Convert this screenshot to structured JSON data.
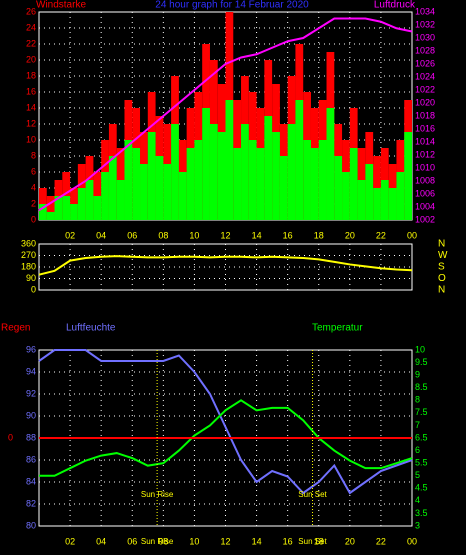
{
  "chart_data": [
    {
      "type": "bar-line",
      "title": "24 hour graph for 14 Februar 2020",
      "y_label": "Windstarke",
      "y2_label": "Luftdruck",
      "x": [
        0.25,
        0.75,
        1.25,
        1.75,
        2.25,
        2.75,
        3.25,
        3.75,
        4.25,
        4.75,
        5.25,
        5.75,
        6.25,
        6.75,
        7.25,
        7.75,
        8.25,
        8.75,
        9.25,
        9.75,
        10.25,
        10.75,
        11.25,
        11.75,
        12.25,
        12.75,
        13.25,
        13.75,
        14.25,
        14.75,
        15.25,
        15.75,
        16.25,
        16.75,
        17.25,
        17.75,
        18.25,
        18.75,
        19.25,
        19.75,
        20.25,
        20.75,
        21.25,
        21.75,
        22.25,
        22.75,
        23.25,
        23.75
      ],
      "series": [
        {
          "color": "#ff0000",
          "values": [
            4,
            3,
            5,
            6,
            4,
            7,
            8,
            6,
            10,
            12,
            9,
            15,
            14,
            11,
            16,
            13,
            12,
            18,
            10,
            14,
            16,
            22,
            20,
            17,
            26,
            15,
            18,
            16,
            14,
            20,
            17,
            12,
            18,
            22,
            16,
            14,
            15,
            21,
            12,
            10,
            14,
            9,
            11,
            8,
            9,
            7,
            10,
            15
          ]
        },
        {
          "color": "#00ff00",
          "values": [
            2,
            1,
            3,
            3,
            2,
            4,
            5,
            3,
            6,
            8,
            5,
            10,
            9,
            7,
            11,
            8,
            7,
            12,
            6,
            9,
            10,
            14,
            12,
            11,
            15,
            9,
            12,
            10,
            9,
            13,
            11,
            8,
            12,
            15,
            10,
            9,
            10,
            14,
            8,
            6,
            9,
            5,
            7,
            4,
            5,
            4,
            6,
            11
          ]
        },
        {
          "name": "Luftdruck",
          "color": "#ff00ff",
          "axis": "y2",
          "x": [
            0,
            1,
            2,
            3,
            4,
            5,
            6,
            7,
            8,
            9,
            10,
            11,
            12,
            13,
            14,
            15,
            16,
            17,
            18,
            19,
            20,
            21,
            22,
            23,
            24
          ],
          "values": [
            1003.5,
            1005,
            1006.5,
            1008,
            1010,
            1012,
            1014,
            1016,
            1018,
            1020,
            1022,
            1024,
            1026,
            1027,
            1027.5,
            1028.5,
            1029.5,
            1030,
            1031.5,
            1033,
            1033,
            1033,
            1032.5,
            1031.5,
            1031
          ]
        }
      ],
      "xlim": [
        0,
        24
      ],
      "xticks": [
        {
          "value": 2,
          "label": "02"
        },
        {
          "value": 4,
          "label": "04"
        },
        {
          "value": 6,
          "label": "06"
        },
        {
          "value": 8,
          "label": "08"
        },
        10,
        12,
        14,
        16,
        18,
        20,
        22,
        {
          "value": 24,
          "label": "00"
        }
      ],
      "ylim": [
        0,
        26
      ],
      "yticks": [
        0,
        2,
        4,
        6,
        8,
        10,
        12,
        14,
        16,
        18,
        20,
        22,
        24,
        26
      ],
      "y2lim": [
        1002,
        1034
      ],
      "y2ticks": [
        1002,
        1004,
        1006,
        1008,
        1010,
        1012,
        1014,
        1016,
        1018,
        1020,
        1022,
        1024,
        1026,
        1028,
        1030,
        1032,
        1034
      ],
      "grid": true
    },
    {
      "type": "line",
      "x": [
        0,
        1,
        2,
        3,
        4,
        5,
        6,
        7,
        8,
        9,
        10,
        11,
        12,
        13,
        14,
        15,
        16,
        17,
        18,
        19,
        20,
        21,
        22,
        23,
        24
      ],
      "series": [
        {
          "color": "#ffff00",
          "values": [
            120,
            150,
            230,
            250,
            260,
            265,
            260,
            255,
            255,
            260,
            260,
            255,
            260,
            260,
            255,
            260,
            255,
            250,
            240,
            220,
            200,
            185,
            170,
            160,
            155
          ]
        }
      ],
      "xlim": [
        0,
        24
      ],
      "xticks": [
        {
          "value": 2,
          "label": "02"
        },
        {
          "value": 4,
          "label": "04"
        },
        {
          "value": 6,
          "label": "06"
        },
        {
          "value": 8,
          "label": "08"
        },
        10,
        12,
        14,
        16,
        18,
        20,
        22,
        {
          "value": 24,
          "label": "00"
        }
      ],
      "ylim": [
        0,
        360
      ],
      "yticks": [
        0,
        90,
        180,
        270,
        360
      ],
      "y2lim": [
        0,
        360
      ],
      "y2ticks": [
        {
          "value": 0,
          "label": "N"
        },
        {
          "value": 90,
          "label": "O"
        },
        {
          "value": 180,
          "label": "S"
        },
        {
          "value": 270,
          "label": "W"
        },
        {
          "value": 360,
          "label": "N"
        }
      ],
      "grid": true
    },
    {
      "type": "line",
      "y_label": "Luftfeuchte",
      "y2_label": "Temperatur",
      "y3_label": "Regen",
      "x": [
        0,
        1,
        2,
        3,
        4,
        5,
        6,
        7,
        8,
        9,
        10,
        11,
        12,
        13,
        14,
        15,
        16,
        17,
        18,
        19,
        20,
        21,
        22,
        23,
        24
      ],
      "series": [
        {
          "name": "Luftfeuchte",
          "color": "#7070ff",
          "values": [
            95,
            96,
            96,
            96,
            95,
            95,
            95,
            95,
            95,
            95.5,
            94,
            92,
            89,
            86,
            84,
            85,
            84.5,
            83,
            84,
            85.5,
            83,
            84,
            85,
            85.5,
            86
          ]
        },
        {
          "name": "Temperatur",
          "color": "#00ff00",
          "axis": "y2",
          "values": [
            5.0,
            5.0,
            5.3,
            5.6,
            5.8,
            5.9,
            5.7,
            5.4,
            5.5,
            6.0,
            6.6,
            7.0,
            7.6,
            8.0,
            7.6,
            7.7,
            7.7,
            7.2,
            6.5,
            6.0,
            5.6,
            5.3,
            5.3,
            5.5,
            5.7
          ]
        },
        {
          "name": "Regen",
          "color": "#ff0000",
          "axis": "y3",
          "x": [
            0,
            24
          ],
          "values": [
            0,
            0
          ]
        }
      ],
      "xlim": [
        0,
        24
      ],
      "xticks": [
        {
          "value": 2,
          "label": "02"
        },
        {
          "value": 4,
          "label": "04"
        },
        {
          "value": 6,
          "label": "06"
        },
        {
          "value": 8,
          "label": "08"
        },
        10,
        12,
        14,
        16,
        18,
        20,
        22,
        {
          "value": 24,
          "label": "00"
        }
      ],
      "ylim": [
        80,
        96
      ],
      "yticks": [
        80,
        82,
        84,
        86,
        88,
        90,
        92,
        94,
        96
      ],
      "y2lim": [
        3,
        10
      ],
      "y2ticks": [
        3,
        3.5,
        4,
        4.5,
        5,
        5.5,
        6,
        6.5,
        7,
        7.5,
        8,
        8.5,
        9,
        9.5,
        10
      ],
      "y3lim": [
        -8,
        8
      ],
      "y3ticks": [
        0
      ],
      "annotations": [
        {
          "x": 7.6,
          "label": "Sun Rise"
        },
        {
          "x": 17.6,
          "label": "Sun Set"
        }
      ],
      "grid": true
    }
  ]
}
